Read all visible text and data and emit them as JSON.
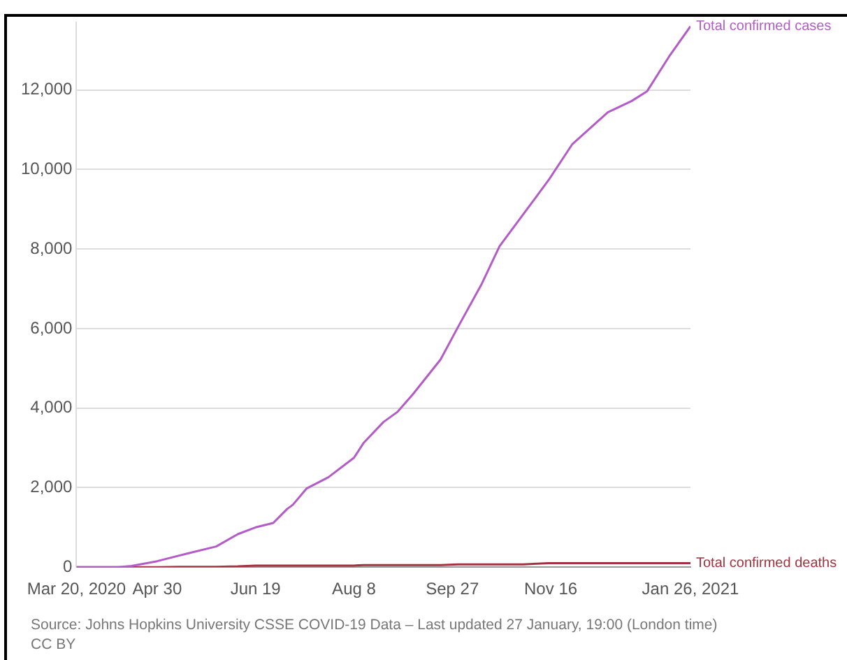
{
  "chart_data": {
    "type": "line",
    "x": [
      "2020-03-20",
      "2020-04-10",
      "2020-04-17",
      "2020-04-30",
      "2020-05-16",
      "2020-05-30",
      "2020-06-10",
      "2020-06-19",
      "2020-06-28",
      "2020-07-05",
      "2020-07-08",
      "2020-07-15",
      "2020-07-26",
      "2020-08-08",
      "2020-08-13",
      "2020-08-23",
      "2020-08-30",
      "2020-09-07",
      "2020-09-21",
      "2020-09-30",
      "2020-10-12",
      "2020-10-21",
      "2020-11-02",
      "2020-11-15",
      "2020-11-27",
      "2020-12-15",
      "2020-12-27",
      "2021-01-04",
      "2021-01-15",
      "2021-01-26"
    ],
    "series": [
      {
        "name": "Total confirmed cases",
        "color": "#b35cc8",
        "values": [
          0,
          0,
          30,
          150,
          350,
          520,
          830,
          1000,
          1110,
          1460,
          1570,
          1980,
          2260,
          2750,
          3130,
          3650,
          3900,
          4350,
          5220,
          6050,
          7130,
          8070,
          8870,
          9740,
          10640,
          11440,
          11720,
          11970,
          12830,
          13600
        ]
      },
      {
        "name": "Total confirmed deaths",
        "color": "#a2323f",
        "values": [
          0,
          0,
          0,
          0,
          10,
          10,
          20,
          40,
          40,
          40,
          40,
          40,
          40,
          40,
          50,
          50,
          50,
          50,
          50,
          70,
          70,
          70,
          70,
          100,
          100,
          100,
          100,
          100,
          100,
          100
        ]
      }
    ],
    "xlim": [
      "2020-03-20",
      "2021-01-26"
    ],
    "xticks": [
      {
        "value": "2020-03-20",
        "label": "Mar 20, 2020"
      },
      {
        "value": "2020-04-30",
        "label": "Apr 30"
      },
      {
        "value": "2020-06-19",
        "label": "Jun 19"
      },
      {
        "value": "2020-08-08",
        "label": "Aug 8"
      },
      {
        "value": "2020-09-27",
        "label": "Sep 27"
      },
      {
        "value": "2020-11-16",
        "label": "Nov 16"
      },
      {
        "value": "2021-01-26",
        "label": "Jan 26, 2021"
      }
    ],
    "yticks": [
      0,
      {
        "value": 2000,
        "label": "2,000"
      },
      {
        "value": 4000,
        "label": "4,000"
      },
      {
        "value": 6000,
        "label": "6,000"
      },
      {
        "value": 8000,
        "label": "8,000"
      },
      {
        "value": 10000,
        "label": "10,000"
      },
      {
        "value": 12000,
        "label": "12,000"
      }
    ],
    "ylim": [
      0,
      13700
    ],
    "grid": "y",
    "legend": false,
    "marker": "none",
    "line_style": "solid",
    "annotations": [
      "Source: Johns Hopkins University CSSE COVID-19 Data – Last updated 27 January, 19:00 (London time)",
      "CC BY"
    ]
  }
}
